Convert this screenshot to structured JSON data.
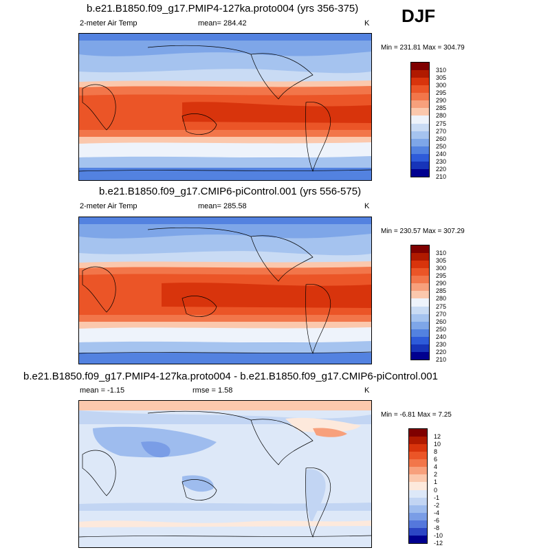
{
  "season": "DJF",
  "panels": [
    {
      "title": "b.e21.B1850.f09_g17.PMIP4-127ka.proto004 (yrs 356-375)",
      "left_label": "2-meter Air Temp",
      "center_label": "mean= 284.42",
      "units": "K",
      "minmax": "Min = 231.81 Max = 304.79",
      "kind": "abs",
      "colorbar": [
        "310",
        "305",
        "300",
        "295",
        "290",
        "285",
        "280",
        "275",
        "270",
        "260",
        "250",
        "240",
        "230",
        "220",
        "210"
      ]
    },
    {
      "title": "b.e21.B1850.f09_g17.CMIP6-piControl.001 (yrs 556-575)",
      "left_label": "2-meter Air Temp",
      "center_label": "mean= 285.58",
      "units": "K",
      "minmax": "Min = 230.57 Max = 307.29",
      "kind": "abs",
      "colorbar": [
        "310",
        "305",
        "300",
        "295",
        "290",
        "285",
        "280",
        "275",
        "270",
        "260",
        "250",
        "240",
        "230",
        "220",
        "210"
      ]
    },
    {
      "title": "b.e21.B1850.f09_g17.PMIP4-127ka.proto004 - b.e21.B1850.f09_g17.CMIP6-piControl.001",
      "left_label": "mean =  -1.15",
      "center_label": "rmse =   1.58",
      "units": "K",
      "minmax": "Min =  -6.81 Max =   7.25",
      "kind": "diff",
      "colorbar": [
        "12",
        "10",
        "8",
        "6",
        "4",
        "2",
        "1",
        "0",
        "-1",
        "-2",
        "-4",
        "-6",
        "-8",
        "-10",
        "-12"
      ]
    }
  ],
  "colors": {
    "abs": [
      "#7f0000",
      "#b01a00",
      "#d8340c",
      "#eb5527",
      "#f2764a",
      "#f7a07c",
      "#fbc8ad",
      "#eef3fb",
      "#c9dbf4",
      "#a5c3ef",
      "#7ea6e8",
      "#5382e0",
      "#2e5bd9",
      "#1734b9",
      "#00008f"
    ],
    "diff": [
      "#7f0000",
      "#b01a00",
      "#d8340c",
      "#eb5527",
      "#f2764a",
      "#f7a07c",
      "#fbc8ad",
      "#fde9dc",
      "#dde8f8",
      "#c2d5f3",
      "#9ebcee",
      "#7a9de6",
      "#5578dc",
      "#2c46c4",
      "#00008f"
    ]
  }
}
